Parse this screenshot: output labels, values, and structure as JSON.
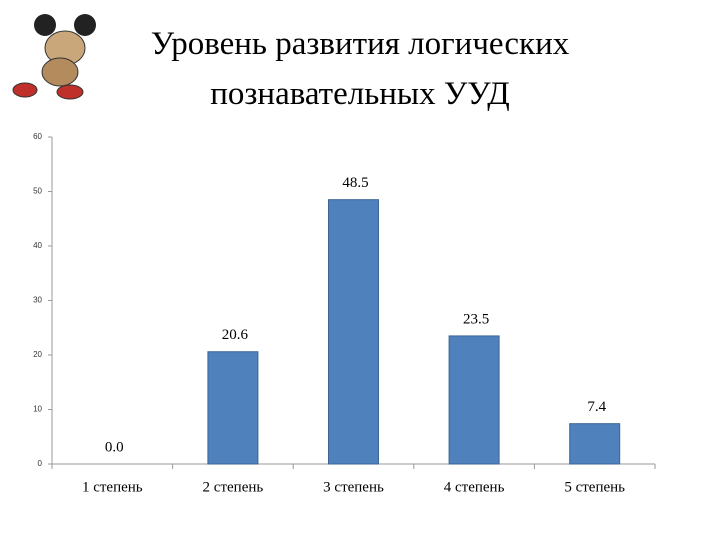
{
  "chart_data": {
    "type": "bar",
    "title": "Уровень развития логических познавательных УУД",
    "categories": [
      "1 степень",
      "2 степень",
      "3 степень",
      "4 степень",
      "5 степень"
    ],
    "values": [
      0,
      20.6,
      48.5,
      23.5,
      7.4
    ],
    "value_labels": [
      "0.0",
      "20.6",
      "48.5",
      "23.5",
      "7.4"
    ],
    "color": "#4f81bd",
    "ylim": [
      0,
      60
    ],
    "yticks": [
      0,
      10,
      20,
      30,
      40,
      50,
      60
    ],
    "grid": false
  }
}
